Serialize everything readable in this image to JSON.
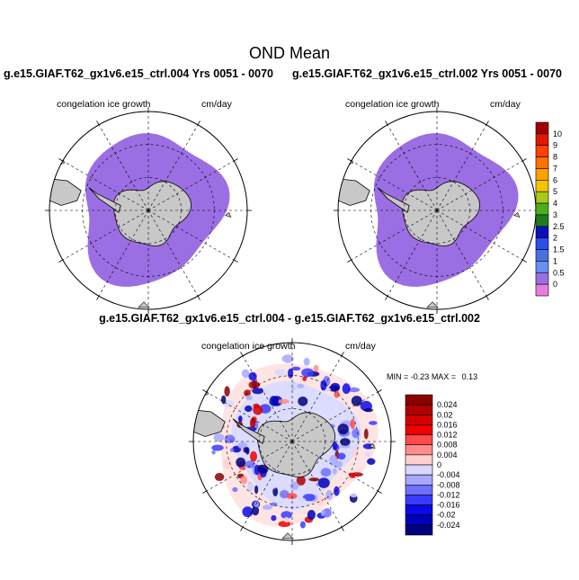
{
  "header": {
    "title": "OND Mean"
  },
  "panels": [
    {
      "run": "g.e15.GIAF.T62_gx1v6.e15_ctrl.004  Yrs 0051 - 0070",
      "field": "congelation ice growth",
      "units": "cm/day"
    },
    {
      "run": "g.e15.GIAF.T62_gx1v6.e15_ctrl.002  Yrs 0051 - 0070",
      "field": "congelation ice growth",
      "units": "cm/day"
    }
  ],
  "difference": {
    "title": "g.e15.GIAF.T62_gx1v6.e15_ctrl.004 - g.e15.GIAF.T62_gx1v6.e15_ctrl.002",
    "field": "congelation ice growth",
    "units": "cm/day",
    "min_label": "MIN =",
    "min_value": "-0.23",
    "max_label": "MAX =",
    "max_value": "0.13"
  },
  "chart_data": [
    {
      "type": "heatmap",
      "map": "south-polar-stereographic",
      "title": "g.e15.GIAF.T62_gx1v6.e15_ctrl.004  Yrs 0051 - 0070",
      "field": "congelation ice growth",
      "units": "cm/day",
      "dominant_level": "0 - 0.5",
      "colorbar_levels": [
        "0",
        "0.5",
        "1",
        "1.5",
        "2",
        "2.5",
        "3",
        "4",
        "5",
        "6",
        "7",
        "8",
        "9",
        "10"
      ],
      "colorbar_colors": [
        "#e87de0",
        "#9b6fe3",
        "#6a8ff0",
        "#4a6fe0",
        "#2a4ee8",
        "#0a10b8",
        "#1f7a1f",
        "#4caf1c",
        "#a8c81a",
        "#f2c500",
        "#ffa000",
        "#ff7000",
        "#ff4000",
        "#e01800",
        "#a00000"
      ]
    },
    {
      "type": "heatmap",
      "map": "south-polar-stereographic",
      "title": "g.e15.GIAF.T62_gx1v6.e15_ctrl.002  Yrs 0051 - 0070",
      "field": "congelation ice growth",
      "units": "cm/day",
      "dominant_level": "0 - 0.5"
    },
    {
      "type": "heatmap",
      "map": "south-polar-stereographic",
      "title": "g.e15.GIAF.T62_gx1v6.e15_ctrl.004 - g.e15.GIAF.T62_gx1v6.e15_ctrl.002",
      "field": "congelation ice growth",
      "units": "cm/day",
      "min": -0.23,
      "max": 0.13,
      "colorbar_levels": [
        "0.024",
        "0.02",
        "0.016",
        "0.012",
        "0.008",
        "0.004",
        "0",
        "-0.004",
        "-0.008",
        "-0.012",
        "-0.016",
        "-0.02",
        "-0.024"
      ],
      "colorbar_colors": [
        "#8b0000",
        "#b00000",
        "#d40000",
        "#f00000",
        "#ff4a4a",
        "#ff8c8c",
        "#ffd0d0",
        "#d8d8ff",
        "#a8a8ff",
        "#7070ff",
        "#3a3aff",
        "#0a0ae8",
        "#0000b8",
        "#000080"
      ]
    }
  ]
}
